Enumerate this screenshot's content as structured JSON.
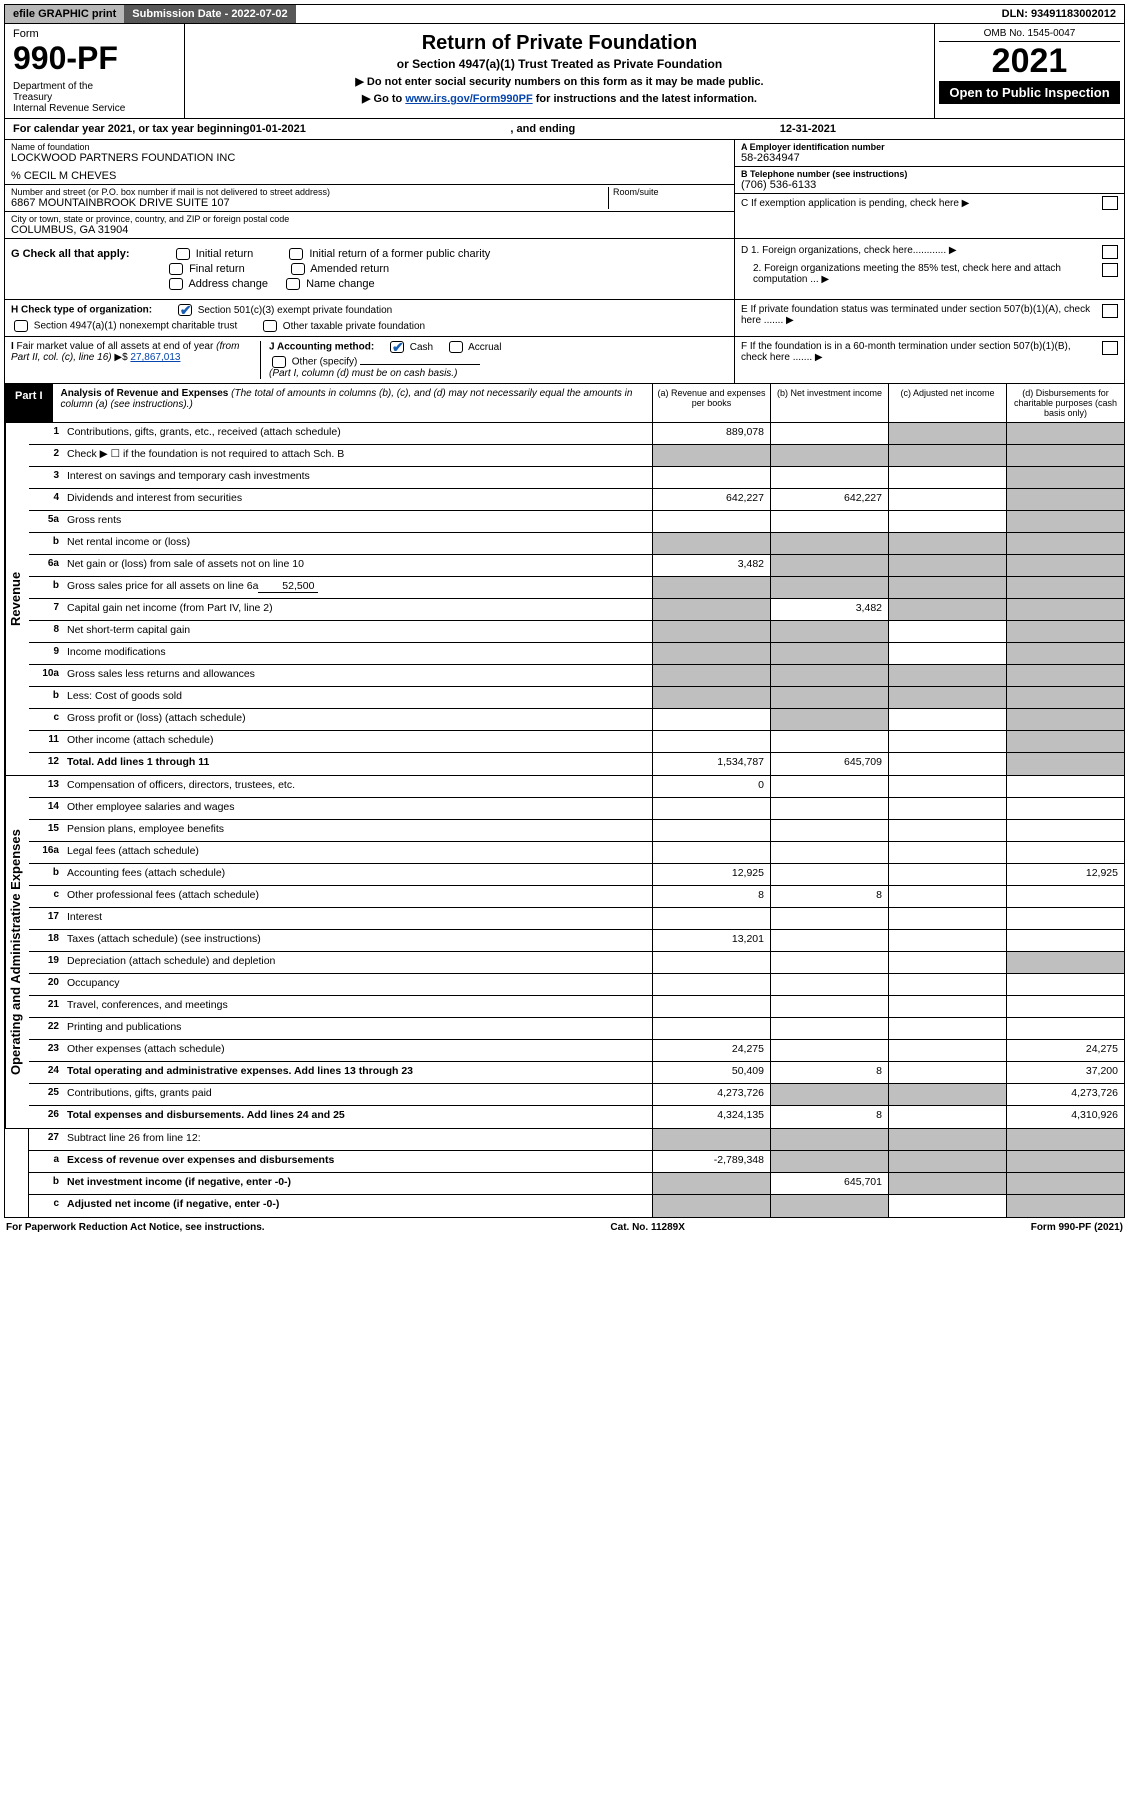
{
  "topbar": {
    "efile": "efile GRAPHIC print",
    "submission": "Submission Date - 2022-07-02",
    "dln": "DLN: 93491183002012"
  },
  "header": {
    "form_label": "Form",
    "form_no": "990-PF",
    "dept": "Department of the Treasury\nInternal Revenue Service",
    "title": "Return of Private Foundation",
    "subtitle": "or Section 4947(a)(1) Trust Treated as Private Foundation",
    "instr1": "▶ Do not enter social security numbers on this form as it may be made public.",
    "instr2_pre": "▶ Go to ",
    "instr2_link": "www.irs.gov/Form990PF",
    "instr2_post": " for instructions and the latest information.",
    "omb": "OMB No. 1545-0047",
    "year": "2021",
    "open": "Open to Public Inspection"
  },
  "calyear": {
    "pre": "For calendar year 2021, or tax year beginning ",
    "begin": "01-01-2021",
    "mid": " , and ending ",
    "end": "12-31-2021"
  },
  "ident": {
    "name_lbl": "Name of foundation",
    "name": "LOCKWOOD PARTNERS FOUNDATION INC",
    "care_of": "% CECIL M CHEVES",
    "addr_lbl": "Number and street (or P.O. box number if mail is not delivered to street address)",
    "addr": "6867 MOUNTAINBROOK DRIVE SUITE 107",
    "room_lbl": "Room/suite",
    "city_lbl": "City or town, state or province, country, and ZIP or foreign postal code",
    "city": "COLUMBUS, GA  31904",
    "ein_lbl": "A Employer identification number",
    "ein": "58-2634947",
    "tel_lbl": "B Telephone number (see instructions)",
    "tel": "(706) 536-6133",
    "c_lbl": "C If exemption application is pending, check here ▶",
    "d1": "D 1. Foreign organizations, check here............ ▶",
    "d2": "2. Foreign organizations meeting the 85% test, check here and attach computation ... ▶",
    "e": "E  If private foundation status was terminated under section 507(b)(1)(A), check here ....... ▶",
    "f": "F  If the foundation is in a 60-month termination under section 507(b)(1)(B), check here ....... ▶"
  },
  "g": {
    "label": "G Check all that apply:",
    "items": [
      "Initial return",
      "Initial return of a former public charity",
      "Final return",
      "Amended return",
      "Address change",
      "Name change"
    ]
  },
  "h": {
    "label": "H Check type of organization:",
    "opt1": "Section 501(c)(3) exempt private foundation",
    "opt2": "Section 4947(a)(1) nonexempt charitable trust",
    "opt3": "Other taxable private foundation"
  },
  "i": {
    "label": "I Fair market value of all assets at end of year (from Part II, col. (c), line 16) ▶$ ",
    "value": "27,867,013"
  },
  "j": {
    "label": "J Accounting method:",
    "cash": "Cash",
    "accrual": "Accrual",
    "other": "Other (specify)",
    "note": "(Part I, column (d) must be on cash basis.)"
  },
  "part1": {
    "label": "Part I",
    "title": "Analysis of Revenue and Expenses",
    "note": " (The total of amounts in columns (b), (c), and (d) may not necessarily equal the amounts in column (a) (see instructions).)",
    "col_a": "(a) Revenue and expenses per books",
    "col_b": "(b) Net investment income",
    "col_c": "(c) Adjusted net income",
    "col_d": "(d) Disbursements for charitable purposes (cash basis only)"
  },
  "sides": {
    "revenue": "Revenue",
    "expenses": "Operating and Administrative Expenses"
  },
  "rows": [
    {
      "n": "1",
      "d": "Contributions, gifts, grants, etc., received (attach schedule)",
      "a": "889,078",
      "b": "",
      "c": "g",
      "dd": "g"
    },
    {
      "n": "2",
      "d": "Check ▶ ☐ if the foundation is not required to attach Sch. B",
      "a": "g",
      "b": "g",
      "c": "g",
      "dd": "g"
    },
    {
      "n": "3",
      "d": "Interest on savings and temporary cash investments",
      "a": "",
      "b": "",
      "c": "",
      "dd": "g"
    },
    {
      "n": "4",
      "d": "Dividends and interest from securities",
      "a": "642,227",
      "b": "642,227",
      "c": "",
      "dd": "g"
    },
    {
      "n": "5a",
      "d": "Gross rents",
      "a": "",
      "b": "",
      "c": "",
      "dd": "g"
    },
    {
      "n": "b",
      "d": "Net rental income or (loss)",
      "a": "g",
      "b": "g",
      "c": "g",
      "dd": "g"
    },
    {
      "n": "6a",
      "d": "Net gain or (loss) from sale of assets not on line 10",
      "a": "3,482",
      "b": "g",
      "c": "g",
      "dd": "g"
    },
    {
      "n": "b",
      "d": "Gross sales price for all assets on line 6a",
      "inline": "52,500",
      "a": "g",
      "b": "g",
      "c": "g",
      "dd": "g"
    },
    {
      "n": "7",
      "d": "Capital gain net income (from Part IV, line 2)",
      "a": "g",
      "b": "3,482",
      "c": "g",
      "dd": "g"
    },
    {
      "n": "8",
      "d": "Net short-term capital gain",
      "a": "g",
      "b": "g",
      "c": "",
      "dd": "g"
    },
    {
      "n": "9",
      "d": "Income modifications",
      "a": "g",
      "b": "g",
      "c": "",
      "dd": "g"
    },
    {
      "n": "10a",
      "d": "Gross sales less returns and allowances",
      "a": "g",
      "b": "g",
      "c": "g",
      "dd": "g"
    },
    {
      "n": "b",
      "d": "Less: Cost of goods sold",
      "a": "g",
      "b": "g",
      "c": "g",
      "dd": "g"
    },
    {
      "n": "c",
      "d": "Gross profit or (loss) (attach schedule)",
      "a": "",
      "b": "g",
      "c": "",
      "dd": "g"
    },
    {
      "n": "11",
      "d": "Other income (attach schedule)",
      "a": "",
      "b": "",
      "c": "",
      "dd": "g"
    },
    {
      "n": "12",
      "d": "Total. Add lines 1 through 11",
      "bold": true,
      "a": "1,534,787",
      "b": "645,709",
      "c": "",
      "dd": "g"
    }
  ],
  "exp_rows": [
    {
      "n": "13",
      "d": "Compensation of officers, directors, trustees, etc.",
      "a": "0",
      "b": "",
      "c": "",
      "dd": ""
    },
    {
      "n": "14",
      "d": "Other employee salaries and wages",
      "a": "",
      "b": "",
      "c": "",
      "dd": ""
    },
    {
      "n": "15",
      "d": "Pension plans, employee benefits",
      "a": "",
      "b": "",
      "c": "",
      "dd": ""
    },
    {
      "n": "16a",
      "d": "Legal fees (attach schedule)",
      "a": "",
      "b": "",
      "c": "",
      "dd": ""
    },
    {
      "n": "b",
      "d": "Accounting fees (attach schedule)",
      "a": "12,925",
      "b": "",
      "c": "",
      "dd": "12,925"
    },
    {
      "n": "c",
      "d": "Other professional fees (attach schedule)",
      "a": "8",
      "b": "8",
      "c": "",
      "dd": ""
    },
    {
      "n": "17",
      "d": "Interest",
      "a": "",
      "b": "",
      "c": "",
      "dd": ""
    },
    {
      "n": "18",
      "d": "Taxes (attach schedule) (see instructions)",
      "a": "13,201",
      "b": "",
      "c": "",
      "dd": ""
    },
    {
      "n": "19",
      "d": "Depreciation (attach schedule) and depletion",
      "a": "",
      "b": "",
      "c": "",
      "dd": "g"
    },
    {
      "n": "20",
      "d": "Occupancy",
      "a": "",
      "b": "",
      "c": "",
      "dd": ""
    },
    {
      "n": "21",
      "d": "Travel, conferences, and meetings",
      "a": "",
      "b": "",
      "c": "",
      "dd": ""
    },
    {
      "n": "22",
      "d": "Printing and publications",
      "a": "",
      "b": "",
      "c": "",
      "dd": ""
    },
    {
      "n": "23",
      "d": "Other expenses (attach schedule)",
      "a": "24,275",
      "b": "",
      "c": "",
      "dd": "24,275"
    },
    {
      "n": "24",
      "d": "Total operating and administrative expenses. Add lines 13 through 23",
      "bold": true,
      "a": "50,409",
      "b": "8",
      "c": "",
      "dd": "37,200"
    },
    {
      "n": "25",
      "d": "Contributions, gifts, grants paid",
      "a": "4,273,726",
      "b": "g",
      "c": "g",
      "dd": "4,273,726"
    },
    {
      "n": "26",
      "d": "Total expenses and disbursements. Add lines 24 and 25",
      "bold": true,
      "a": "4,324,135",
      "b": "8",
      "c": "",
      "dd": "4,310,926"
    }
  ],
  "bottom_rows": [
    {
      "n": "27",
      "d": "Subtract line 26 from line 12:",
      "a": "g",
      "b": "g",
      "c": "g",
      "dd": "g"
    },
    {
      "n": "a",
      "d": "Excess of revenue over expenses and disbursements",
      "bold": true,
      "a": "-2,789,348",
      "b": "g",
      "c": "g",
      "dd": "g"
    },
    {
      "n": "b",
      "d": "Net investment income (if negative, enter -0-)",
      "bold": true,
      "a": "g",
      "b": "645,701",
      "c": "g",
      "dd": "g"
    },
    {
      "n": "c",
      "d": "Adjusted net income (if negative, enter -0-)",
      "bold": true,
      "a": "g",
      "b": "g",
      "c": "",
      "dd": "g"
    }
  ],
  "footer": {
    "left": "For Paperwork Reduction Act Notice, see instructions.",
    "mid": "Cat. No. 11289X",
    "right": "Form 990-PF (2021)"
  }
}
